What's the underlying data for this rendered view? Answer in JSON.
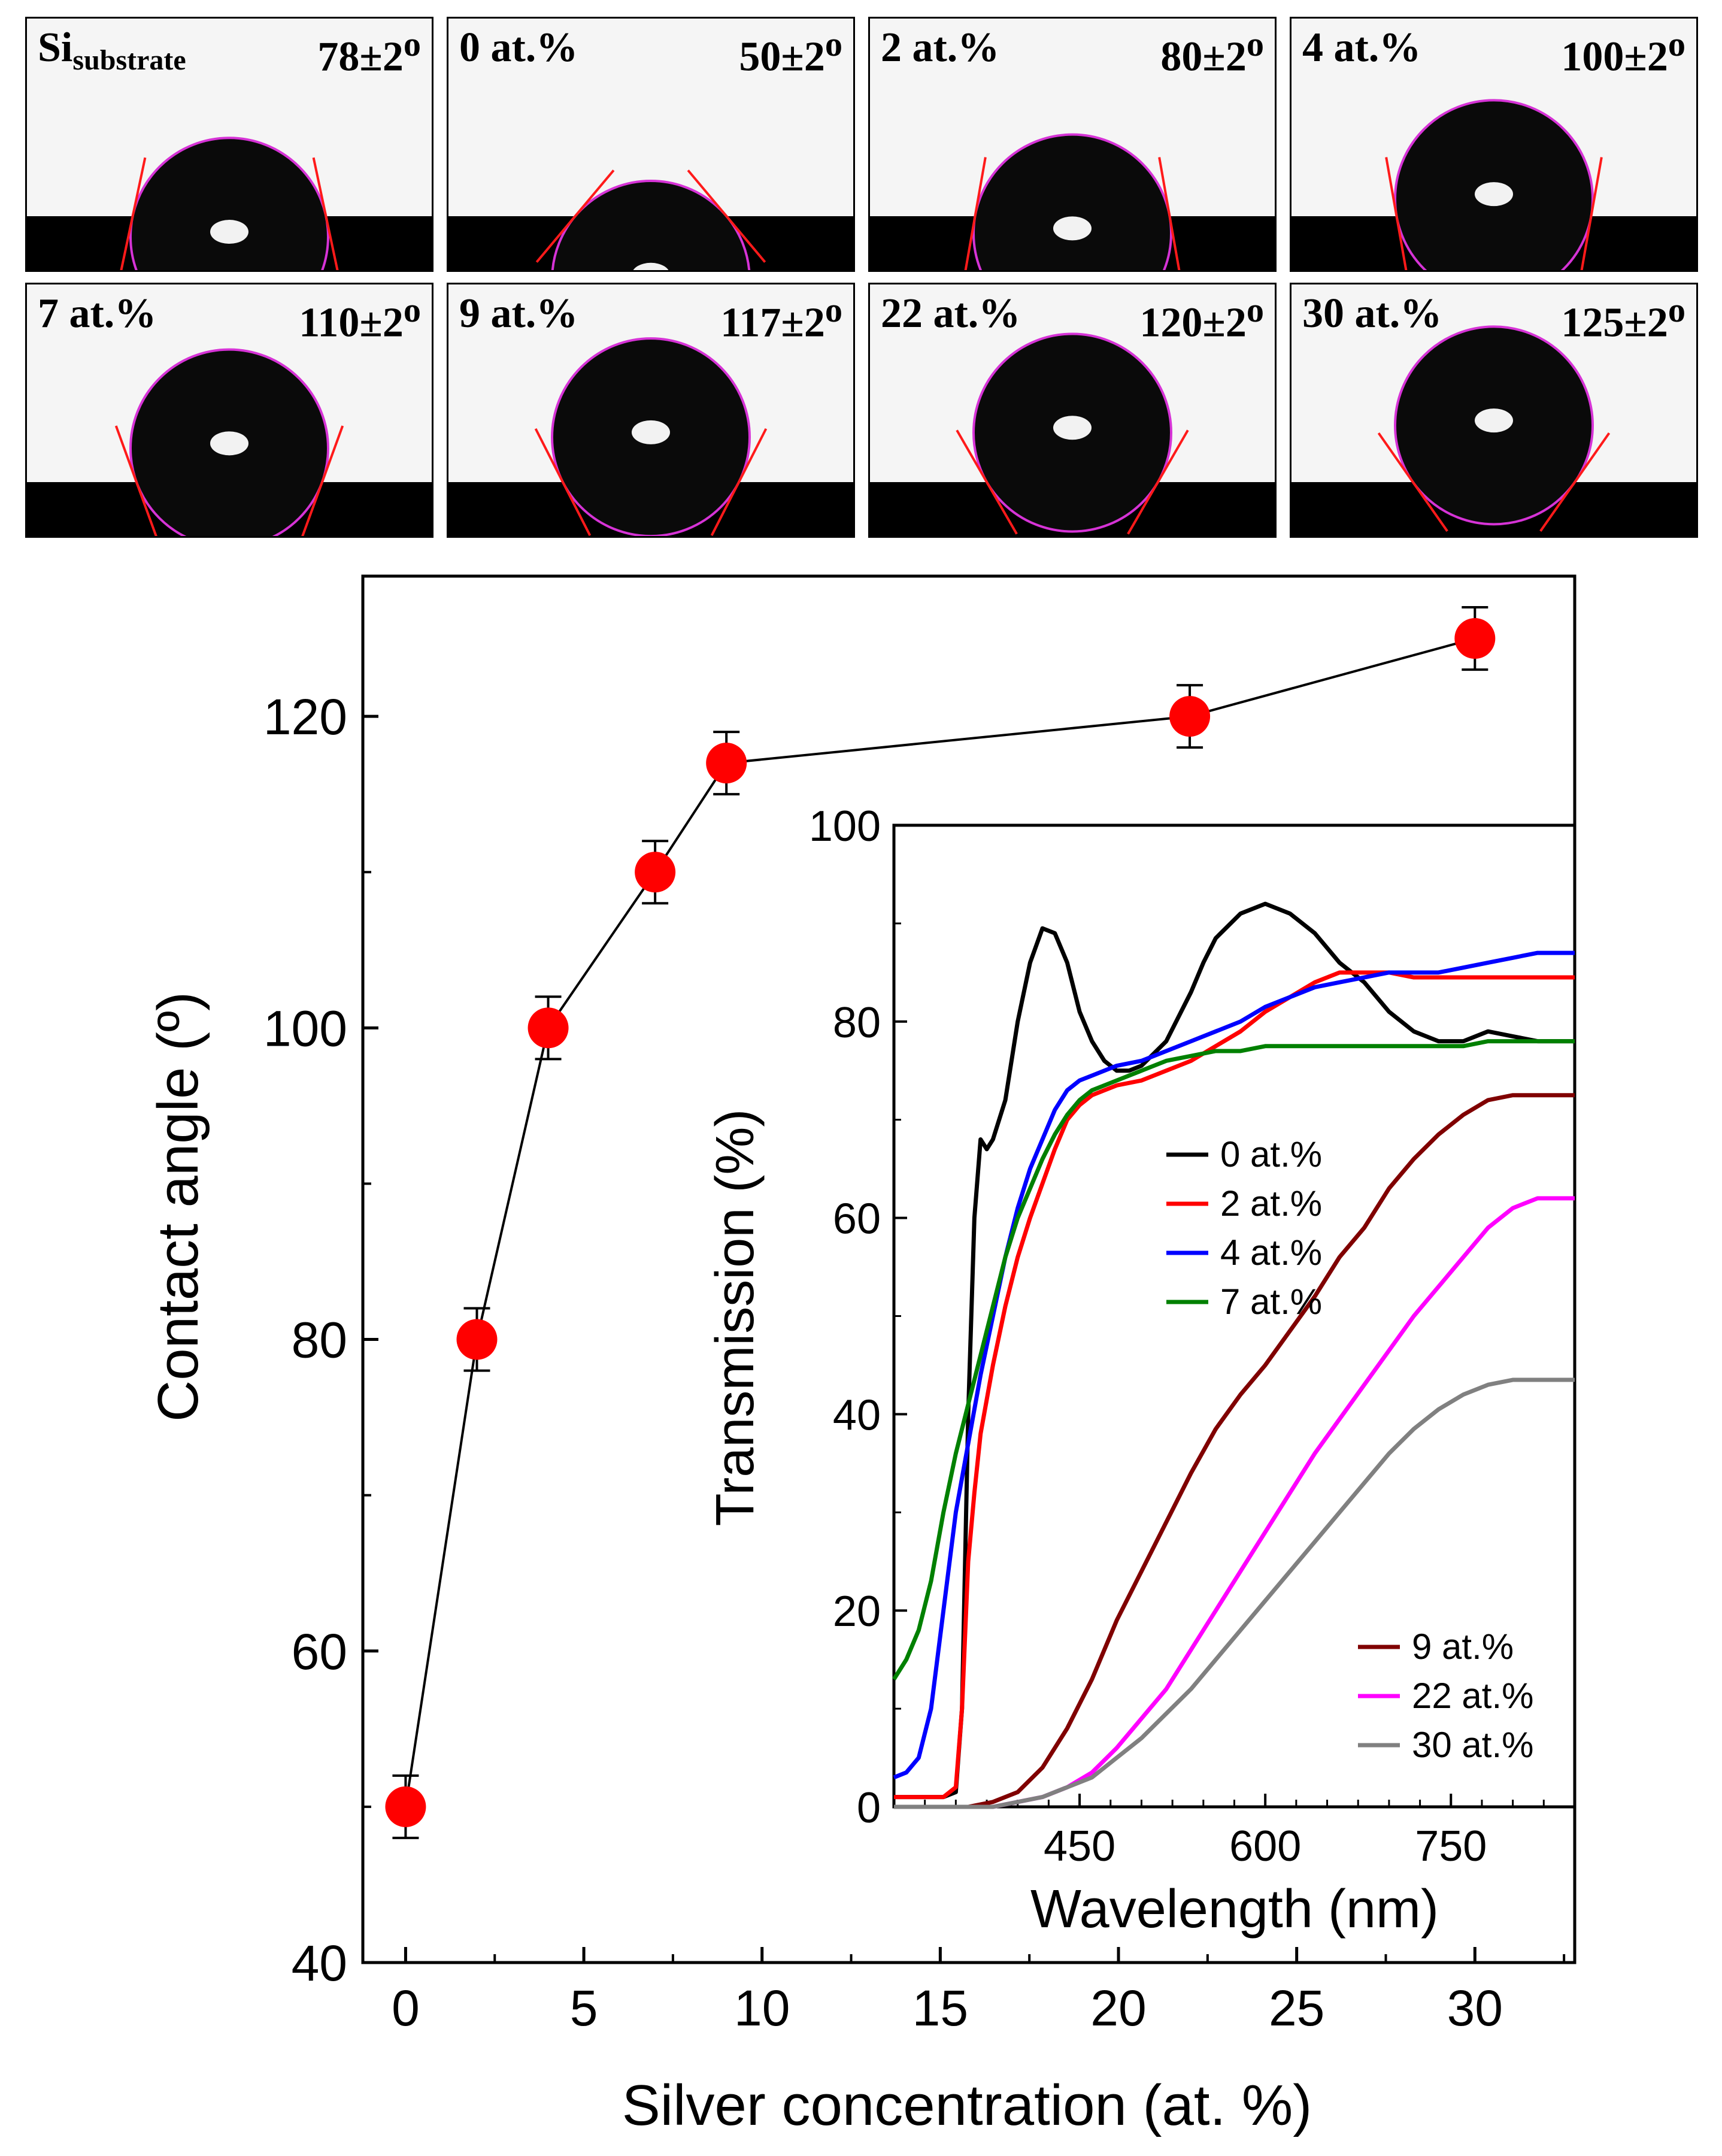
{
  "droplet_panels": [
    {
      "label": "Si",
      "label_sub": "substrate",
      "angle_label": "78±2",
      "degree_mark": "o",
      "angle": 78
    },
    {
      "label": "0 at.%",
      "label_sub": "",
      "angle_label": "50±2",
      "degree_mark": "o",
      "angle": 50
    },
    {
      "label": "2 at.%",
      "label_sub": "",
      "angle_label": "80±2",
      "degree_mark": "o",
      "angle": 80
    },
    {
      "label": "4 at.%",
      "label_sub": "",
      "angle_label": "100±2",
      "degree_mark": "o",
      "angle": 100
    },
    {
      "label": "7 at.%",
      "label_sub": "",
      "angle_label": "110±2",
      "degree_mark": "o",
      "angle": 110
    },
    {
      "label": "9 at.%",
      "label_sub": "",
      "angle_label": "117±2",
      "degree_mark": "o",
      "angle": 117
    },
    {
      "label": "22 at.%",
      "label_sub": "",
      "angle_label": "120±2",
      "degree_mark": "o",
      "angle": 120
    },
    {
      "label": "30 at.%",
      "label_sub": "",
      "angle_label": "125±2",
      "degree_mark": "o",
      "angle": 125
    }
  ],
  "chart_data": [
    {
      "type": "scatter",
      "xlabel": "Silver concentration (at. %)",
      "ylabel": "Contact angle (º)",
      "xlim": [
        -1.2,
        32.8
      ],
      "ylim": [
        40,
        129
      ],
      "xticks": [
        0,
        5,
        10,
        15,
        20,
        25,
        30
      ],
      "yticks": [
        40,
        60,
        80,
        100,
        120
      ],
      "x": [
        0,
        2,
        4,
        7,
        9,
        22,
        30
      ],
      "y": [
        50,
        80,
        100,
        110,
        117,
        120,
        125
      ],
      "yerr": 2,
      "marker_color": "#ff0000",
      "line_color": "#000000"
    },
    {
      "type": "line",
      "xlabel": "Wavelength (nm)",
      "ylabel": "Transmission (%)",
      "xlim": [
        300,
        850
      ],
      "ylim": [
        0,
        100
      ],
      "xticks": [
        450,
        600,
        750
      ],
      "yticks": [
        0,
        20,
        40,
        60,
        80,
        100
      ],
      "legend_top": [
        "0 at.%",
        "2 at.%",
        "4 at.%",
        "7 at.%"
      ],
      "legend_bottom": [
        "9 at.%",
        "22 at.%",
        "30 at.%"
      ],
      "series": [
        {
          "name": "0 at.%",
          "color": "#000000",
          "x": [
            300,
            320,
            340,
            350,
            355,
            360,
            365,
            370,
            375,
            380,
            390,
            400,
            410,
            420,
            430,
            440,
            450,
            460,
            470,
            480,
            490,
            500,
            520,
            540,
            550,
            560,
            580,
            600,
            620,
            640,
            660,
            680,
            700,
            720,
            740,
            760,
            780,
            800,
            820,
            850
          ],
          "y": [
            1,
            1,
            1,
            1.5,
            10,
            40,
            60,
            68,
            67,
            68,
            72,
            80,
            86,
            89.5,
            89,
            86,
            81,
            78,
            76,
            75,
            75,
            75.5,
            78,
            83,
            86,
            88.5,
            91,
            92,
            91,
            89,
            86,
            84,
            81,
            79,
            78,
            78,
            79,
            78.5,
            78,
            78
          ]
        },
        {
          "name": "2 at.%",
          "color": "#ff0000",
          "x": [
            300,
            320,
            340,
            350,
            355,
            360,
            365,
            370,
            380,
            390,
            400,
            410,
            420,
            430,
            440,
            450,
            460,
            470,
            480,
            500,
            520,
            540,
            560,
            580,
            600,
            620,
            640,
            660,
            680,
            700,
            720,
            740,
            760,
            780,
            800,
            820,
            850
          ],
          "y": [
            1,
            1,
            1,
            2,
            10,
            25,
            32,
            38,
            45,
            51,
            56,
            60,
            63.5,
            67,
            70,
            71.5,
            72.5,
            73,
            73.5,
            74,
            75,
            76,
            77.5,
            79,
            81,
            82.5,
            84,
            85,
            85,
            85,
            84.5,
            84.5,
            84.5,
            84.5,
            84.5,
            84.5,
            84.5
          ]
        },
        {
          "name": "4 at.%",
          "color": "#0000ff",
          "x": [
            300,
            310,
            320,
            330,
            340,
            350,
            360,
            370,
            380,
            390,
            400,
            410,
            420,
            430,
            440,
            450,
            460,
            470,
            480,
            500,
            520,
            540,
            560,
            580,
            600,
            620,
            640,
            660,
            680,
            700,
            720,
            740,
            760,
            780,
            800,
            820,
            850
          ],
          "y": [
            3,
            3.5,
            5,
            10,
            20,
            30,
            37,
            44,
            50,
            56,
            61,
            65,
            68,
            71,
            73,
            74,
            74.5,
            75,
            75.5,
            76,
            77,
            78,
            79,
            80,
            81.5,
            82.5,
            83.5,
            84,
            84.5,
            85,
            85,
            85,
            85.5,
            86,
            86.5,
            87,
            87
          ]
        },
        {
          "name": "7 at.%",
          "color": "#008000",
          "x": [
            300,
            310,
            320,
            330,
            340,
            350,
            360,
            370,
            380,
            390,
            400,
            410,
            420,
            430,
            440,
            450,
            460,
            470,
            480,
            500,
            520,
            540,
            560,
            580,
            600,
            620,
            640,
            660,
            680,
            700,
            720,
            740,
            760,
            780,
            800,
            820,
            850
          ],
          "y": [
            13,
            15,
            18,
            23,
            30,
            36,
            41,
            46,
            51,
            56,
            60,
            63,
            66,
            68.5,
            70.5,
            72,
            73,
            73.5,
            74,
            75,
            76,
            76.5,
            77,
            77,
            77.5,
            77.5,
            77.5,
            77.5,
            77.5,
            77.5,
            77.5,
            77.5,
            77.5,
            78,
            78,
            78,
            78
          ]
        },
        {
          "name": "9 at.%",
          "color": "#800000",
          "x": [
            300,
            340,
            360,
            380,
            400,
            420,
            440,
            460,
            480,
            500,
            520,
            540,
            560,
            580,
            600,
            620,
            640,
            660,
            680,
            700,
            720,
            740,
            760,
            780,
            800,
            820,
            850
          ],
          "y": [
            0,
            0,
            0,
            0.5,
            1.5,
            4,
            8,
            13,
            19,
            24,
            29,
            34,
            38.5,
            42,
            45,
            48.5,
            52,
            56,
            59,
            63,
            66,
            68.5,
            70.5,
            72,
            72.5,
            72.5,
            72.5
          ]
        },
        {
          "name": "22 at.%",
          "color": "#ff00ff",
          "x": [
            300,
            360,
            380,
            400,
            420,
            440,
            460,
            480,
            500,
            520,
            540,
            560,
            580,
            600,
            620,
            640,
            660,
            680,
            700,
            720,
            740,
            760,
            780,
            800,
            820,
            850
          ],
          "y": [
            0,
            0,
            0,
            0.5,
            1,
            2,
            3.5,
            6,
            9,
            12,
            16,
            20,
            24,
            28,
            32,
            36,
            39.5,
            43,
            46.5,
            50,
            53,
            56,
            59,
            61,
            62,
            62
          ]
        },
        {
          "name": "30 at.%",
          "color": "#808080",
          "x": [
            300,
            360,
            380,
            400,
            420,
            440,
            460,
            480,
            500,
            520,
            540,
            560,
            580,
            600,
            620,
            640,
            660,
            680,
            700,
            720,
            740,
            760,
            780,
            800,
            820,
            850
          ],
          "y": [
            0,
            0,
            0,
            0.5,
            1,
            2,
            3,
            5,
            7,
            9.5,
            12,
            15,
            18,
            21,
            24,
            27,
            30,
            33,
            36,
            38.5,
            40.5,
            42,
            43,
            43.5,
            43.5,
            43.5
          ]
        }
      ]
    }
  ]
}
